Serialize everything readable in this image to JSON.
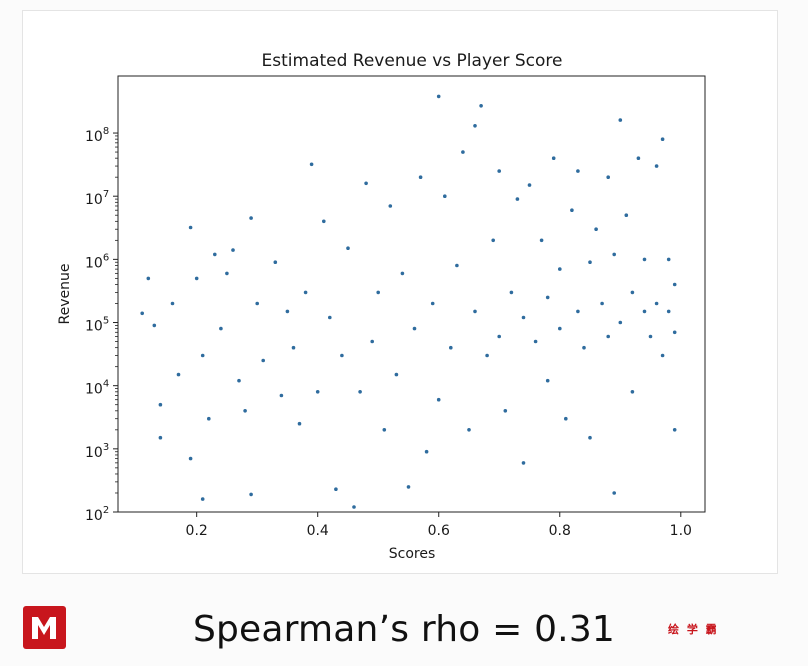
{
  "caption": "Spearman’s rho = 0.31",
  "watermark": "绘 学 霸",
  "colors": {
    "points": "#2f6c9e",
    "brand": "#c8161d"
  },
  "chart_data": {
    "type": "scatter",
    "title": "Estimated Revenue vs Player Score",
    "xlabel": "Scores",
    "ylabel": "Revenue",
    "xlim": [
      0.07,
      1.04
    ],
    "ylim": [
      100,
      800000000
    ],
    "y_scale": "log",
    "x_ticks": [
      "0.2",
      "0.4",
      "0.6",
      "0.8",
      "1.0"
    ],
    "y_ticks": [
      {
        "base": "10",
        "exp": "2"
      },
      {
        "base": "10",
        "exp": "3"
      },
      {
        "base": "10",
        "exp": "4"
      },
      {
        "base": "10",
        "exp": "5"
      },
      {
        "base": "10",
        "exp": "6"
      },
      {
        "base": "10",
        "exp": "7"
      },
      {
        "base": "10",
        "exp": "8"
      }
    ],
    "grid": false,
    "legend": "none",
    "points": [
      [
        0.11,
        140000.0
      ],
      [
        0.12,
        500000.0
      ],
      [
        0.13,
        90000.0
      ],
      [
        0.14,
        1500.0
      ],
      [
        0.14,
        5000.0
      ],
      [
        0.16,
        200000.0
      ],
      [
        0.17,
        15000.0
      ],
      [
        0.19,
        3200000.0
      ],
      [
        0.19,
        700.0
      ],
      [
        0.2,
        500000.0
      ],
      [
        0.21,
        30000.0
      ],
      [
        0.21,
        160.0
      ],
      [
        0.22,
        3000.0
      ],
      [
        0.23,
        1200000.0
      ],
      [
        0.24,
        80000.0
      ],
      [
        0.25,
        600000.0
      ],
      [
        0.26,
        1400000.0
      ],
      [
        0.27,
        12000.0
      ],
      [
        0.28,
        4000.0
      ],
      [
        0.29,
        4500000.0
      ],
      [
        0.29,
        190.0
      ],
      [
        0.3,
        200000.0
      ],
      [
        0.31,
        25000.0
      ],
      [
        0.33,
        900000.0
      ],
      [
        0.34,
        7000.0
      ],
      [
        0.35,
        150000.0
      ],
      [
        0.36,
        40000.0
      ],
      [
        0.37,
        2500.0
      ],
      [
        0.38,
        300000.0
      ],
      [
        0.39,
        32000000.0
      ],
      [
        0.4,
        8000.0
      ],
      [
        0.41,
        4000000.0
      ],
      [
        0.42,
        120000.0
      ],
      [
        0.43,
        230.0
      ],
      [
        0.44,
        30000.0
      ],
      [
        0.45,
        1500000.0
      ],
      [
        0.46,
        120.0
      ],
      [
        0.47,
        8000.0
      ],
      [
        0.48,
        16000000.0
      ],
      [
        0.49,
        50000.0
      ],
      [
        0.5,
        300000.0
      ],
      [
        0.51,
        2000.0
      ],
      [
        0.52,
        7000000.0
      ],
      [
        0.53,
        15000.0
      ],
      [
        0.54,
        600000.0
      ],
      [
        0.55,
        250.0
      ],
      [
        0.56,
        80000.0
      ],
      [
        0.57,
        20000000.0
      ],
      [
        0.58,
        900.0
      ],
      [
        0.59,
        200000.0
      ],
      [
        0.6,
        380000000.0
      ],
      [
        0.6,
        6000.0
      ],
      [
        0.61,
        10000000.0
      ],
      [
        0.62,
        40000.0
      ],
      [
        0.63,
        800000.0
      ],
      [
        0.64,
        50000000.0
      ],
      [
        0.65,
        2000.0
      ],
      [
        0.66,
        150000.0
      ],
      [
        0.66,
        130000000.0
      ],
      [
        0.67,
        270000000.0
      ],
      [
        0.68,
        30000.0
      ],
      [
        0.69,
        2000000.0
      ],
      [
        0.7,
        60000.0
      ],
      [
        0.7,
        25000000.0
      ],
      [
        0.71,
        4000.0
      ],
      [
        0.72,
        300000.0
      ],
      [
        0.73,
        9000000.0
      ],
      [
        0.74,
        120000.0
      ],
      [
        0.74,
        600.0
      ],
      [
        0.75,
        15000000.0
      ],
      [
        0.76,
        50000.0
      ],
      [
        0.77,
        2000000.0
      ],
      [
        0.78,
        250000.0
      ],
      [
        0.78,
        12000.0
      ],
      [
        0.79,
        40000000.0
      ],
      [
        0.8,
        80000.0
      ],
      [
        0.8,
        700000.0
      ],
      [
        0.81,
        3000.0
      ],
      [
        0.82,
        6000000.0
      ],
      [
        0.83,
        150000.0
      ],
      [
        0.83,
        25000000.0
      ],
      [
        0.84,
        40000.0
      ],
      [
        0.85,
        900000.0
      ],
      [
        0.85,
        1500.0
      ],
      [
        0.86,
        3000000.0
      ],
      [
        0.87,
        200000.0
      ],
      [
        0.88,
        60000.0
      ],
      [
        0.88,
        20000000.0
      ],
      [
        0.89,
        1200000.0
      ],
      [
        0.89,
        200.0
      ],
      [
        0.9,
        160000000.0
      ],
      [
        0.9,
        100000.0
      ],
      [
        0.91,
        5000000.0
      ],
      [
        0.92,
        300000.0
      ],
      [
        0.92,
        8000.0
      ],
      [
        0.93,
        40000000.0
      ],
      [
        0.94,
        150000.0
      ],
      [
        0.94,
        1000000.0
      ],
      [
        0.95,
        60000.0
      ],
      [
        0.96,
        30000000.0
      ],
      [
        0.96,
        200000.0
      ],
      [
        0.97,
        80000000.0
      ],
      [
        0.97,
        30000.0
      ],
      [
        0.98,
        1000000.0
      ],
      [
        0.98,
        150000.0
      ],
      [
        0.99,
        70000.0
      ],
      [
        0.99,
        2000.0
      ],
      [
        0.99,
        400000.0
      ]
    ]
  }
}
